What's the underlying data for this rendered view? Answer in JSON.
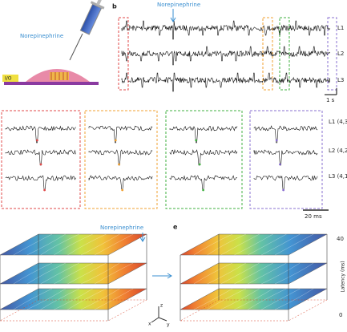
{
  "panel_a": {
    "stimulus": "Norepinephrine",
    "io": "I/O"
  },
  "panel_b": {
    "label": "b",
    "stimulus": "Norepinephrine",
    "channels": [
      "L1",
      "L2",
      "L3"
    ],
    "scale": "1 s"
  },
  "panel_c": {
    "channels": [
      "L1 (4,3)",
      "L2 (4,2)",
      "L3 (4,1)"
    ],
    "scale": "20 ms"
  },
  "panel_d": {
    "stimulus": "Norepinephrine",
    "axes": [
      "x",
      "y",
      "z"
    ]
  },
  "panel_e": {
    "label": "e",
    "axis_title": "Latency (ms)",
    "axis_max": "40",
    "axis_min": "0"
  }
}
